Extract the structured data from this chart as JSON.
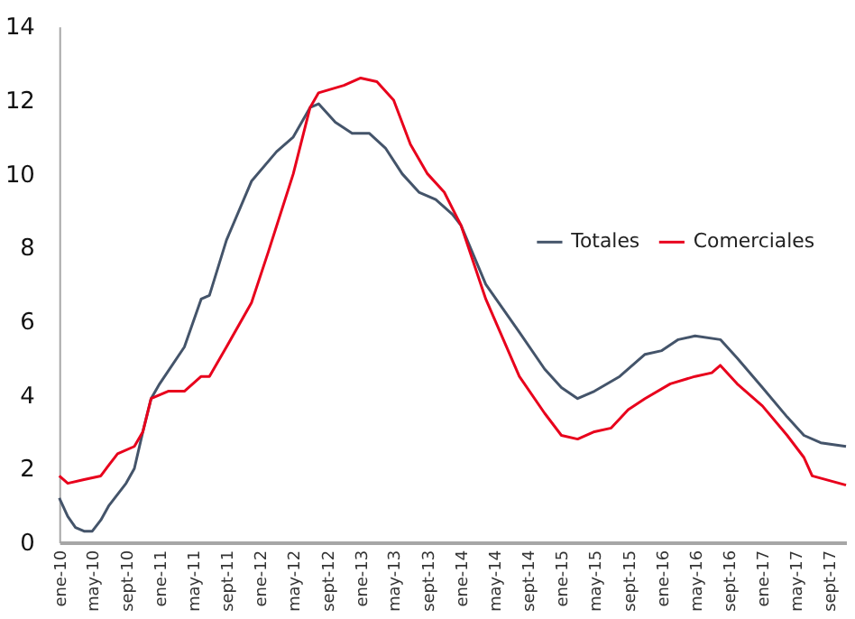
{
  "chart_data": {
    "type": "line",
    "xlim": [
      "2010-01",
      "2017-11"
    ],
    "xticks": [
      {
        "value": "2010-01",
        "label": "ene-10"
      },
      {
        "value": "2010-05",
        "label": "may-10"
      },
      {
        "value": "2010-09",
        "label": "sept-10"
      },
      {
        "value": "2011-01",
        "label": "ene-11"
      },
      {
        "value": "2011-05",
        "label": "may-11"
      },
      {
        "value": "2011-09",
        "label": "sept-11"
      },
      {
        "value": "2012-01",
        "label": "ene-12"
      },
      {
        "value": "2012-05",
        "label": "may-12"
      },
      {
        "value": "2012-09",
        "label": "sept-12"
      },
      {
        "value": "2013-01",
        "label": "ene-13"
      },
      {
        "value": "2013-05",
        "label": "may-13"
      },
      {
        "value": "2013-09",
        "label": "sept-13"
      },
      {
        "value": "2014-01",
        "label": "ene-14"
      },
      {
        "value": "2014-05",
        "label": "may-14"
      },
      {
        "value": "2014-09",
        "label": "sept-14"
      },
      {
        "value": "2015-01",
        "label": "ene-15"
      },
      {
        "value": "2015-05",
        "label": "may-15"
      },
      {
        "value": "2015-09",
        "label": "sept-15"
      },
      {
        "value": "2016-01",
        "label": "ene-16"
      },
      {
        "value": "2016-05",
        "label": "may-16"
      },
      {
        "value": "2016-09",
        "label": "sept-16"
      },
      {
        "value": "2017-01",
        "label": "ene-17"
      },
      {
        "value": "2017-05",
        "label": "may-17"
      },
      {
        "value": "2017-09",
        "label": "sept-17"
      }
    ],
    "ylim": [
      0,
      14
    ],
    "yticks": [
      0,
      2,
      4,
      6,
      8,
      10,
      12,
      14
    ],
    "grid": false,
    "legend": "right",
    "line_style": "solid",
    "marker": "none",
    "series": [
      {
        "name": "Totales",
        "color": "#44546a",
        "x": [
          "2010-01",
          "2010-02",
          "2010-03",
          "2010-04",
          "2010-05",
          "2010-06",
          "2010-07",
          "2010-09",
          "2010-10",
          "2010-11",
          "2010-12",
          "2011-01",
          "2011-04",
          "2011-06",
          "2011-07",
          "2011-09",
          "2011-12",
          "2012-03",
          "2012-05",
          "2012-07",
          "2012-08",
          "2012-10",
          "2012-12",
          "2013-02",
          "2013-04",
          "2013-06",
          "2013-08",
          "2013-10",
          "2013-12",
          "2014-01",
          "2014-04",
          "2014-08",
          "2014-11",
          "2015-01",
          "2015-03",
          "2015-05",
          "2015-08",
          "2015-11",
          "2016-01",
          "2016-03",
          "2016-05",
          "2016-08",
          "2016-10",
          "2017-01",
          "2017-04",
          "2017-06",
          "2017-08",
          "2017-11"
        ],
        "values": [
          1.2,
          0.7,
          0.4,
          0.3,
          0.3,
          0.6,
          1.0,
          1.6,
          2.0,
          3.0,
          3.9,
          4.3,
          5.3,
          6.6,
          6.7,
          8.2,
          9.8,
          10.6,
          11.0,
          11.8,
          11.9,
          11.4,
          11.1,
          11.1,
          10.7,
          10.0,
          9.5,
          9.3,
          8.9,
          8.6,
          7.0,
          5.7,
          4.7,
          4.2,
          3.9,
          4.1,
          4.5,
          5.1,
          5.2,
          5.5,
          5.6,
          5.5,
          5.0,
          4.2,
          3.4,
          2.9,
          2.7,
          2.6
        ]
      },
      {
        "name": "Comerciales",
        "color": "#e8001c",
        "x": [
          "2010-01",
          "2010-02",
          "2010-04",
          "2010-06",
          "2010-07",
          "2010-08",
          "2010-10",
          "2010-11",
          "2010-12",
          "2011-02",
          "2011-04",
          "2011-06",
          "2011-07",
          "2011-09",
          "2011-12",
          "2012-02",
          "2012-05",
          "2012-07",
          "2012-08",
          "2012-11",
          "2013-01",
          "2013-03",
          "2013-05",
          "2013-07",
          "2013-09",
          "2013-11",
          "2014-01",
          "2014-04",
          "2014-08",
          "2014-11",
          "2015-01",
          "2015-03",
          "2015-05",
          "2015-07",
          "2015-09",
          "2015-11",
          "2016-02",
          "2016-05",
          "2016-07",
          "2016-08",
          "2016-10",
          "2017-01",
          "2017-04",
          "2017-06",
          "2017-07",
          "2017-11"
        ],
        "values": [
          1.8,
          1.6,
          1.7,
          1.8,
          2.1,
          2.4,
          2.6,
          3.0,
          3.9,
          4.1,
          4.1,
          4.5,
          4.5,
          5.3,
          6.5,
          7.9,
          10.0,
          11.8,
          12.2,
          12.4,
          12.6,
          12.5,
          12.0,
          10.8,
          10.0,
          9.5,
          8.6,
          6.6,
          4.5,
          3.5,
          2.9,
          2.8,
          3.0,
          3.1,
          3.6,
          3.9,
          4.3,
          4.5,
          4.6,
          4.8,
          4.3,
          3.7,
          2.9,
          2.3,
          1.8,
          1.55
        ]
      }
    ]
  }
}
